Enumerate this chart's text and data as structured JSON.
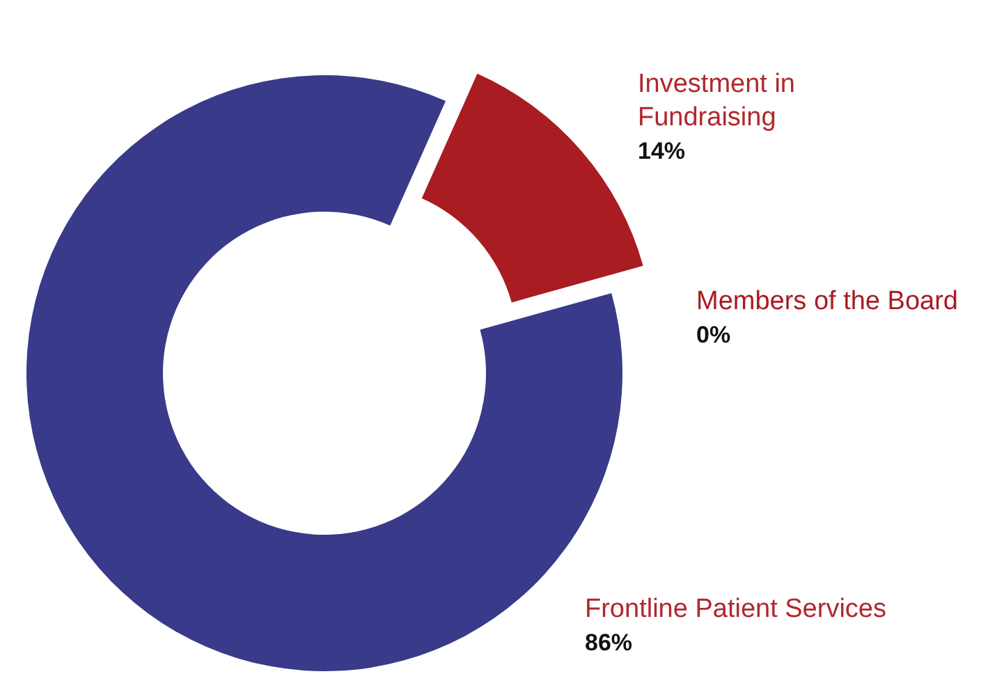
{
  "chart_data": {
    "type": "donut",
    "categories": [
      "Investment in Fundraising",
      "Members of the Board",
      "Frontline Patient Services"
    ],
    "values": [
      14,
      0,
      86
    ],
    "colors": [
      "#a81c22",
      "#a81c22",
      "#3a3a8a"
    ],
    "value_labels": [
      "14%",
      "0%",
      "86%"
    ]
  }
}
